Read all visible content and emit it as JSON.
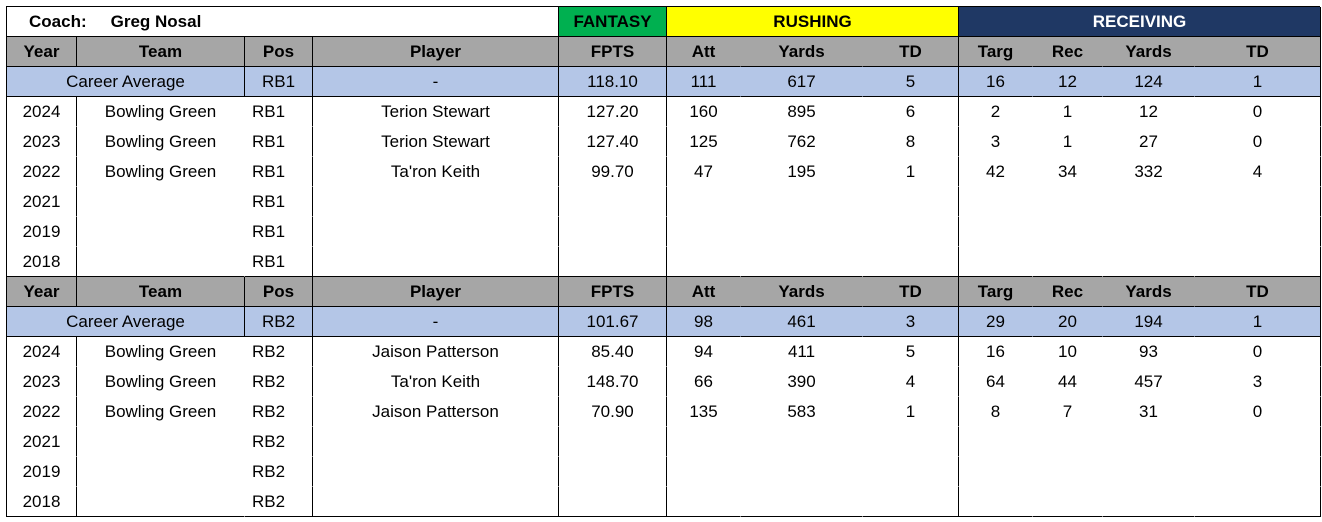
{
  "coach": {
    "label": "Coach:",
    "name": "Greg Nosal"
  },
  "groups": {
    "fantasy": "FANTASY",
    "rushing": "RUSHING",
    "receiving": "RECEIVING"
  },
  "header": [
    "Year",
    "Team",
    "Pos",
    "Player",
    "FPTS",
    "Att",
    "Yards",
    "TD",
    "Targ",
    "Rec",
    "Yards",
    "TD"
  ],
  "sections": [
    {
      "average": {
        "label": "Career Average",
        "pos": "RB1",
        "player": "-",
        "fpts": "118.10",
        "att": "111",
        "rush_yards": "617",
        "rush_td": "5",
        "targ": "16",
        "rec": "12",
        "rec_yards": "124",
        "rec_td": "1"
      },
      "rows": [
        {
          "year": "2024",
          "team": "Bowling Green",
          "pos": "RB1",
          "player": "Terion Stewart",
          "fpts": "127.20",
          "att": "160",
          "rush_yards": "895",
          "rush_td": "6",
          "targ": "2",
          "rec": "1",
          "rec_yards": "12",
          "rec_td": "0"
        },
        {
          "year": "2023",
          "team": "Bowling Green",
          "pos": "RB1",
          "player": "Terion Stewart",
          "fpts": "127.40",
          "att": "125",
          "rush_yards": "762",
          "rush_td": "8",
          "targ": "3",
          "rec": "1",
          "rec_yards": "27",
          "rec_td": "0"
        },
        {
          "year": "2022",
          "team": "Bowling Green",
          "pos": "RB1",
          "player": "Ta'ron Keith",
          "fpts": "99.70",
          "att": "47",
          "rush_yards": "195",
          "rush_td": "1",
          "targ": "42",
          "rec": "34",
          "rec_yards": "332",
          "rec_td": "4"
        },
        {
          "year": "2021",
          "team": "",
          "pos": "RB1",
          "player": "",
          "fpts": "",
          "att": "",
          "rush_yards": "",
          "rush_td": "",
          "targ": "",
          "rec": "",
          "rec_yards": "",
          "rec_td": ""
        },
        {
          "year": "2019",
          "team": "",
          "pos": "RB1",
          "player": "",
          "fpts": "",
          "att": "",
          "rush_yards": "",
          "rush_td": "",
          "targ": "",
          "rec": "",
          "rec_yards": "",
          "rec_td": ""
        },
        {
          "year": "2018",
          "team": "",
          "pos": "RB1",
          "player": "",
          "fpts": "",
          "att": "",
          "rush_yards": "",
          "rush_td": "",
          "targ": "",
          "rec": "",
          "rec_yards": "",
          "rec_td": ""
        }
      ]
    },
    {
      "average": {
        "label": "Career Average",
        "pos": "RB2",
        "player": "-",
        "fpts": "101.67",
        "att": "98",
        "rush_yards": "461",
        "rush_td": "3",
        "targ": "29",
        "rec": "20",
        "rec_yards": "194",
        "rec_td": "1"
      },
      "rows": [
        {
          "year": "2024",
          "team": "Bowling Green",
          "pos": "RB2",
          "player": "Jaison Patterson",
          "fpts": "85.40",
          "att": "94",
          "rush_yards": "411",
          "rush_td": "5",
          "targ": "16",
          "rec": "10",
          "rec_yards": "93",
          "rec_td": "0"
        },
        {
          "year": "2023",
          "team": "Bowling Green",
          "pos": "RB2",
          "player": "Ta'ron Keith",
          "fpts": "148.70",
          "att": "66",
          "rush_yards": "390",
          "rush_td": "4",
          "targ": "64",
          "rec": "44",
          "rec_yards": "457",
          "rec_td": "3"
        },
        {
          "year": "2022",
          "team": "Bowling Green",
          "pos": "RB2",
          "player": "Jaison Patterson",
          "fpts": "70.90",
          "att": "135",
          "rush_yards": "583",
          "rush_td": "1",
          "targ": "8",
          "rec": "7",
          "rec_yards": "31",
          "rec_td": "0"
        },
        {
          "year": "2021",
          "team": "",
          "pos": "RB2",
          "player": "",
          "fpts": "",
          "att": "",
          "rush_yards": "",
          "rush_td": "",
          "targ": "",
          "rec": "",
          "rec_yards": "",
          "rec_td": ""
        },
        {
          "year": "2019",
          "team": "",
          "pos": "RB2",
          "player": "",
          "fpts": "",
          "att": "",
          "rush_yards": "",
          "rush_td": "",
          "targ": "",
          "rec": "",
          "rec_yards": "",
          "rec_td": ""
        },
        {
          "year": "2018",
          "team": "",
          "pos": "RB2",
          "player": "",
          "fpts": "",
          "att": "",
          "rush_yards": "",
          "rush_td": "",
          "targ": "",
          "rec": "",
          "rec_yards": "",
          "rec_td": ""
        }
      ]
    }
  ]
}
